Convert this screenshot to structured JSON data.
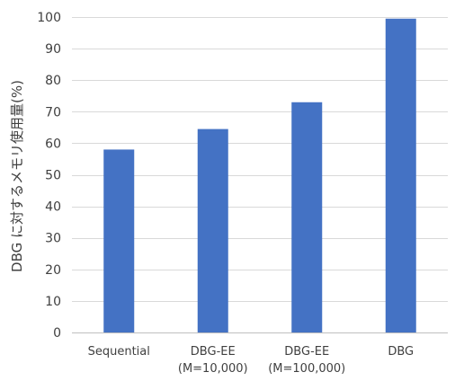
{
  "chart_data": {
    "type": "bar",
    "title": "",
    "xlabel": "",
    "ylabel": "DBG に対するメモリ使用量(%)",
    "ylim": [
      0,
      100
    ],
    "yticks": [
      0,
      10,
      20,
      30,
      40,
      50,
      60,
      70,
      80,
      90,
      100
    ],
    "grid": true,
    "legend": "none",
    "bar_color": "#4472C4",
    "categories": [
      [
        "Sequential"
      ],
      [
        "DBG-EE",
        "(M=10,000)"
      ],
      [
        "DBG-EE",
        "(M=100,000)"
      ],
      [
        "DBG"
      ]
    ],
    "values": [
      58,
      64.5,
      73,
      99.5
    ]
  }
}
